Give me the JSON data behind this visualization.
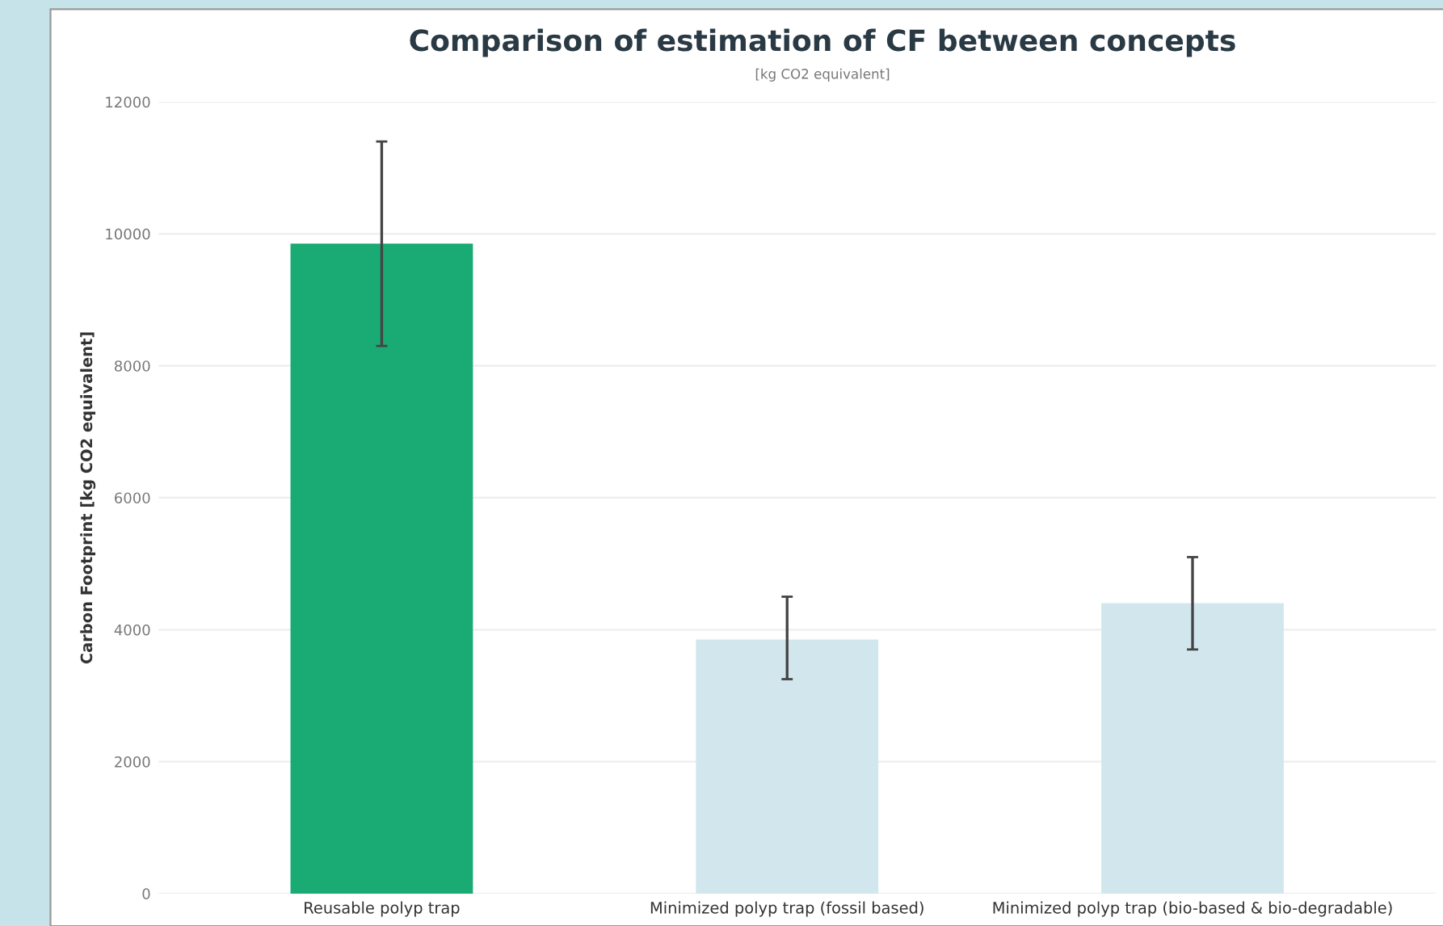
{
  "chart_data": {
    "type": "bar",
    "title": "Comparison of estimation of CF between concepts",
    "subtitle": "[kg CO2 equivalent]",
    "ylabel": "Carbon Footprint [kg CO2 equivalent]",
    "categories": [
      "Reusable polyp trap",
      "Minimized polyp trap (fossil based)",
      "Minimized polyp trap (bio-based & bio-degradable)"
    ],
    "values": [
      9850,
      3850,
      4400
    ],
    "colors": [
      "#1aab74",
      "#d2e7ed",
      "#d2e7ed"
    ],
    "errors": [
      [
        8300,
        11400
      ],
      [
        3250,
        4500
      ],
      [
        3700,
        5100
      ]
    ],
    "ylim": [
      0,
      12000
    ],
    "yticks": [
      0,
      2000,
      4000,
      6000,
      8000,
      10000,
      12000
    ],
    "grid": "y"
  }
}
